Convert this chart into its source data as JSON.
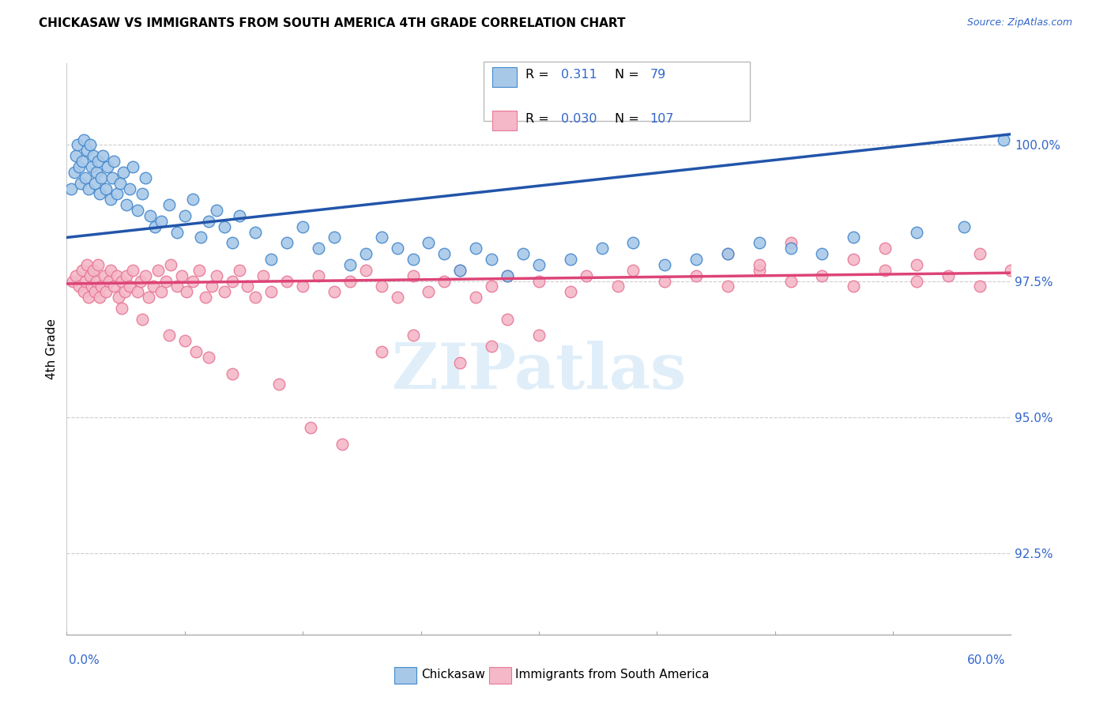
{
  "title": "CHICKASAW VS IMMIGRANTS FROM SOUTH AMERICA 4TH GRADE CORRELATION CHART",
  "source": "Source: ZipAtlas.com",
  "ylabel": "4th Grade",
  "y_ticks": [
    92.5,
    95.0,
    97.5,
    100.0
  ],
  "y_tick_labels": [
    "92.5%",
    "95.0%",
    "97.5%",
    "100.0%"
  ],
  "x_range": [
    0.0,
    60.0
  ],
  "y_range": [
    91.0,
    101.5
  ],
  "legend_blue_label": "Chickasaw",
  "legend_pink_label": "Immigrants from South America",
  "R_blue": 0.311,
  "N_blue": 79,
  "R_pink": 0.03,
  "N_pink": 107,
  "blue_fill": "#a8c8e8",
  "blue_edge": "#4488cc",
  "pink_fill": "#f4b8c8",
  "pink_edge": "#e87898",
  "blue_line_color": "#2255aa",
  "pink_line_color": "#dd4477",
  "watermark": "ZIPatlas",
  "blue_line_x0": 0.0,
  "blue_line_y0": 98.3,
  "blue_line_x1": 60.0,
  "blue_line_y1": 100.2,
  "pink_line_x0": 0.0,
  "pink_line_y0": 97.45,
  "pink_line_x1": 60.0,
  "pink_line_y1": 97.65,
  "blue_x": [
    0.3,
    0.5,
    0.6,
    0.7,
    0.8,
    0.9,
    1.0,
    1.1,
    1.2,
    1.3,
    1.4,
    1.5,
    1.6,
    1.7,
    1.8,
    1.9,
    2.0,
    2.1,
    2.2,
    2.3,
    2.5,
    2.6,
    2.8,
    2.9,
    3.0,
    3.2,
    3.4,
    3.6,
    3.8,
    4.0,
    4.2,
    4.5,
    4.8,
    5.0,
    5.3,
    5.6,
    6.0,
    6.5,
    7.0,
    7.5,
    8.0,
    8.5,
    9.0,
    9.5,
    10.0,
    10.5,
    11.0,
    12.0,
    13.0,
    14.0,
    15.0,
    16.0,
    17.0,
    18.0,
    19.0,
    20.0,
    21.0,
    22.0,
    23.0,
    24.0,
    25.0,
    26.0,
    27.0,
    28.0,
    29.0,
    30.0,
    32.0,
    34.0,
    36.0,
    38.0,
    40.0,
    42.0,
    44.0,
    46.0,
    48.0,
    50.0,
    54.0,
    57.0,
    59.5
  ],
  "blue_y": [
    99.2,
    99.5,
    99.8,
    100.0,
    99.6,
    99.3,
    99.7,
    100.1,
    99.4,
    99.9,
    99.2,
    100.0,
    99.6,
    99.8,
    99.3,
    99.5,
    99.7,
    99.1,
    99.4,
    99.8,
    99.2,
    99.6,
    99.0,
    99.4,
    99.7,
    99.1,
    99.3,
    99.5,
    98.9,
    99.2,
    99.6,
    98.8,
    99.1,
    99.4,
    98.7,
    98.5,
    98.6,
    98.9,
    98.4,
    98.7,
    99.0,
    98.3,
    98.6,
    98.8,
    98.5,
    98.2,
    98.7,
    98.4,
    97.9,
    98.2,
    98.5,
    98.1,
    98.3,
    97.8,
    98.0,
    98.3,
    98.1,
    97.9,
    98.2,
    98.0,
    97.7,
    98.1,
    97.9,
    97.6,
    98.0,
    97.8,
    97.9,
    98.1,
    98.2,
    97.8,
    97.9,
    98.0,
    98.2,
    98.1,
    98.0,
    98.3,
    98.4,
    98.5,
    100.1
  ],
  "pink_x": [
    0.4,
    0.6,
    0.8,
    1.0,
    1.1,
    1.2,
    1.3,
    1.4,
    1.5,
    1.6,
    1.7,
    1.8,
    1.9,
    2.0,
    2.1,
    2.2,
    2.4,
    2.5,
    2.7,
    2.8,
    3.0,
    3.2,
    3.3,
    3.5,
    3.7,
    3.8,
    4.0,
    4.2,
    4.5,
    4.7,
    5.0,
    5.2,
    5.5,
    5.8,
    6.0,
    6.3,
    6.6,
    7.0,
    7.3,
    7.6,
    8.0,
    8.4,
    8.8,
    9.2,
    9.5,
    10.0,
    10.5,
    11.0,
    11.5,
    12.0,
    12.5,
    13.0,
    14.0,
    15.0,
    16.0,
    17.0,
    18.0,
    19.0,
    20.0,
    21.0,
    22.0,
    23.0,
    24.0,
    25.0,
    26.0,
    27.0,
    28.0,
    30.0,
    32.0,
    33.0,
    35.0,
    36.0,
    38.0,
    40.0,
    42.0,
    44.0,
    46.0,
    48.0,
    50.0,
    52.0,
    54.0,
    56.0,
    58.0,
    42.0,
    44.0,
    46.0,
    50.0,
    52.0,
    54.0,
    58.0,
    60.0,
    28.0,
    30.0,
    20.0,
    22.0,
    25.0,
    27.0,
    7.5,
    9.0,
    3.5,
    4.8,
    6.5,
    8.2,
    10.5,
    13.5,
    15.5,
    17.5
  ],
  "pink_y": [
    97.5,
    97.6,
    97.4,
    97.7,
    97.3,
    97.5,
    97.8,
    97.2,
    97.6,
    97.4,
    97.7,
    97.3,
    97.5,
    97.8,
    97.2,
    97.4,
    97.6,
    97.3,
    97.5,
    97.7,
    97.4,
    97.6,
    97.2,
    97.5,
    97.3,
    97.6,
    97.4,
    97.7,
    97.3,
    97.5,
    97.6,
    97.2,
    97.4,
    97.7,
    97.3,
    97.5,
    97.8,
    97.4,
    97.6,
    97.3,
    97.5,
    97.7,
    97.2,
    97.4,
    97.6,
    97.3,
    97.5,
    97.7,
    97.4,
    97.2,
    97.6,
    97.3,
    97.5,
    97.4,
    97.6,
    97.3,
    97.5,
    97.7,
    97.4,
    97.2,
    97.6,
    97.3,
    97.5,
    97.7,
    97.2,
    97.4,
    97.6,
    97.5,
    97.3,
    97.6,
    97.4,
    97.7,
    97.5,
    97.6,
    97.4,
    97.7,
    97.5,
    97.6,
    97.4,
    97.7,
    97.5,
    97.6,
    97.4,
    98.0,
    97.8,
    98.2,
    97.9,
    98.1,
    97.8,
    98.0,
    97.7,
    96.8,
    96.5,
    96.2,
    96.5,
    96.0,
    96.3,
    96.4,
    96.1,
    97.0,
    96.8,
    96.5,
    96.2,
    95.8,
    95.6,
    94.8,
    94.5
  ]
}
